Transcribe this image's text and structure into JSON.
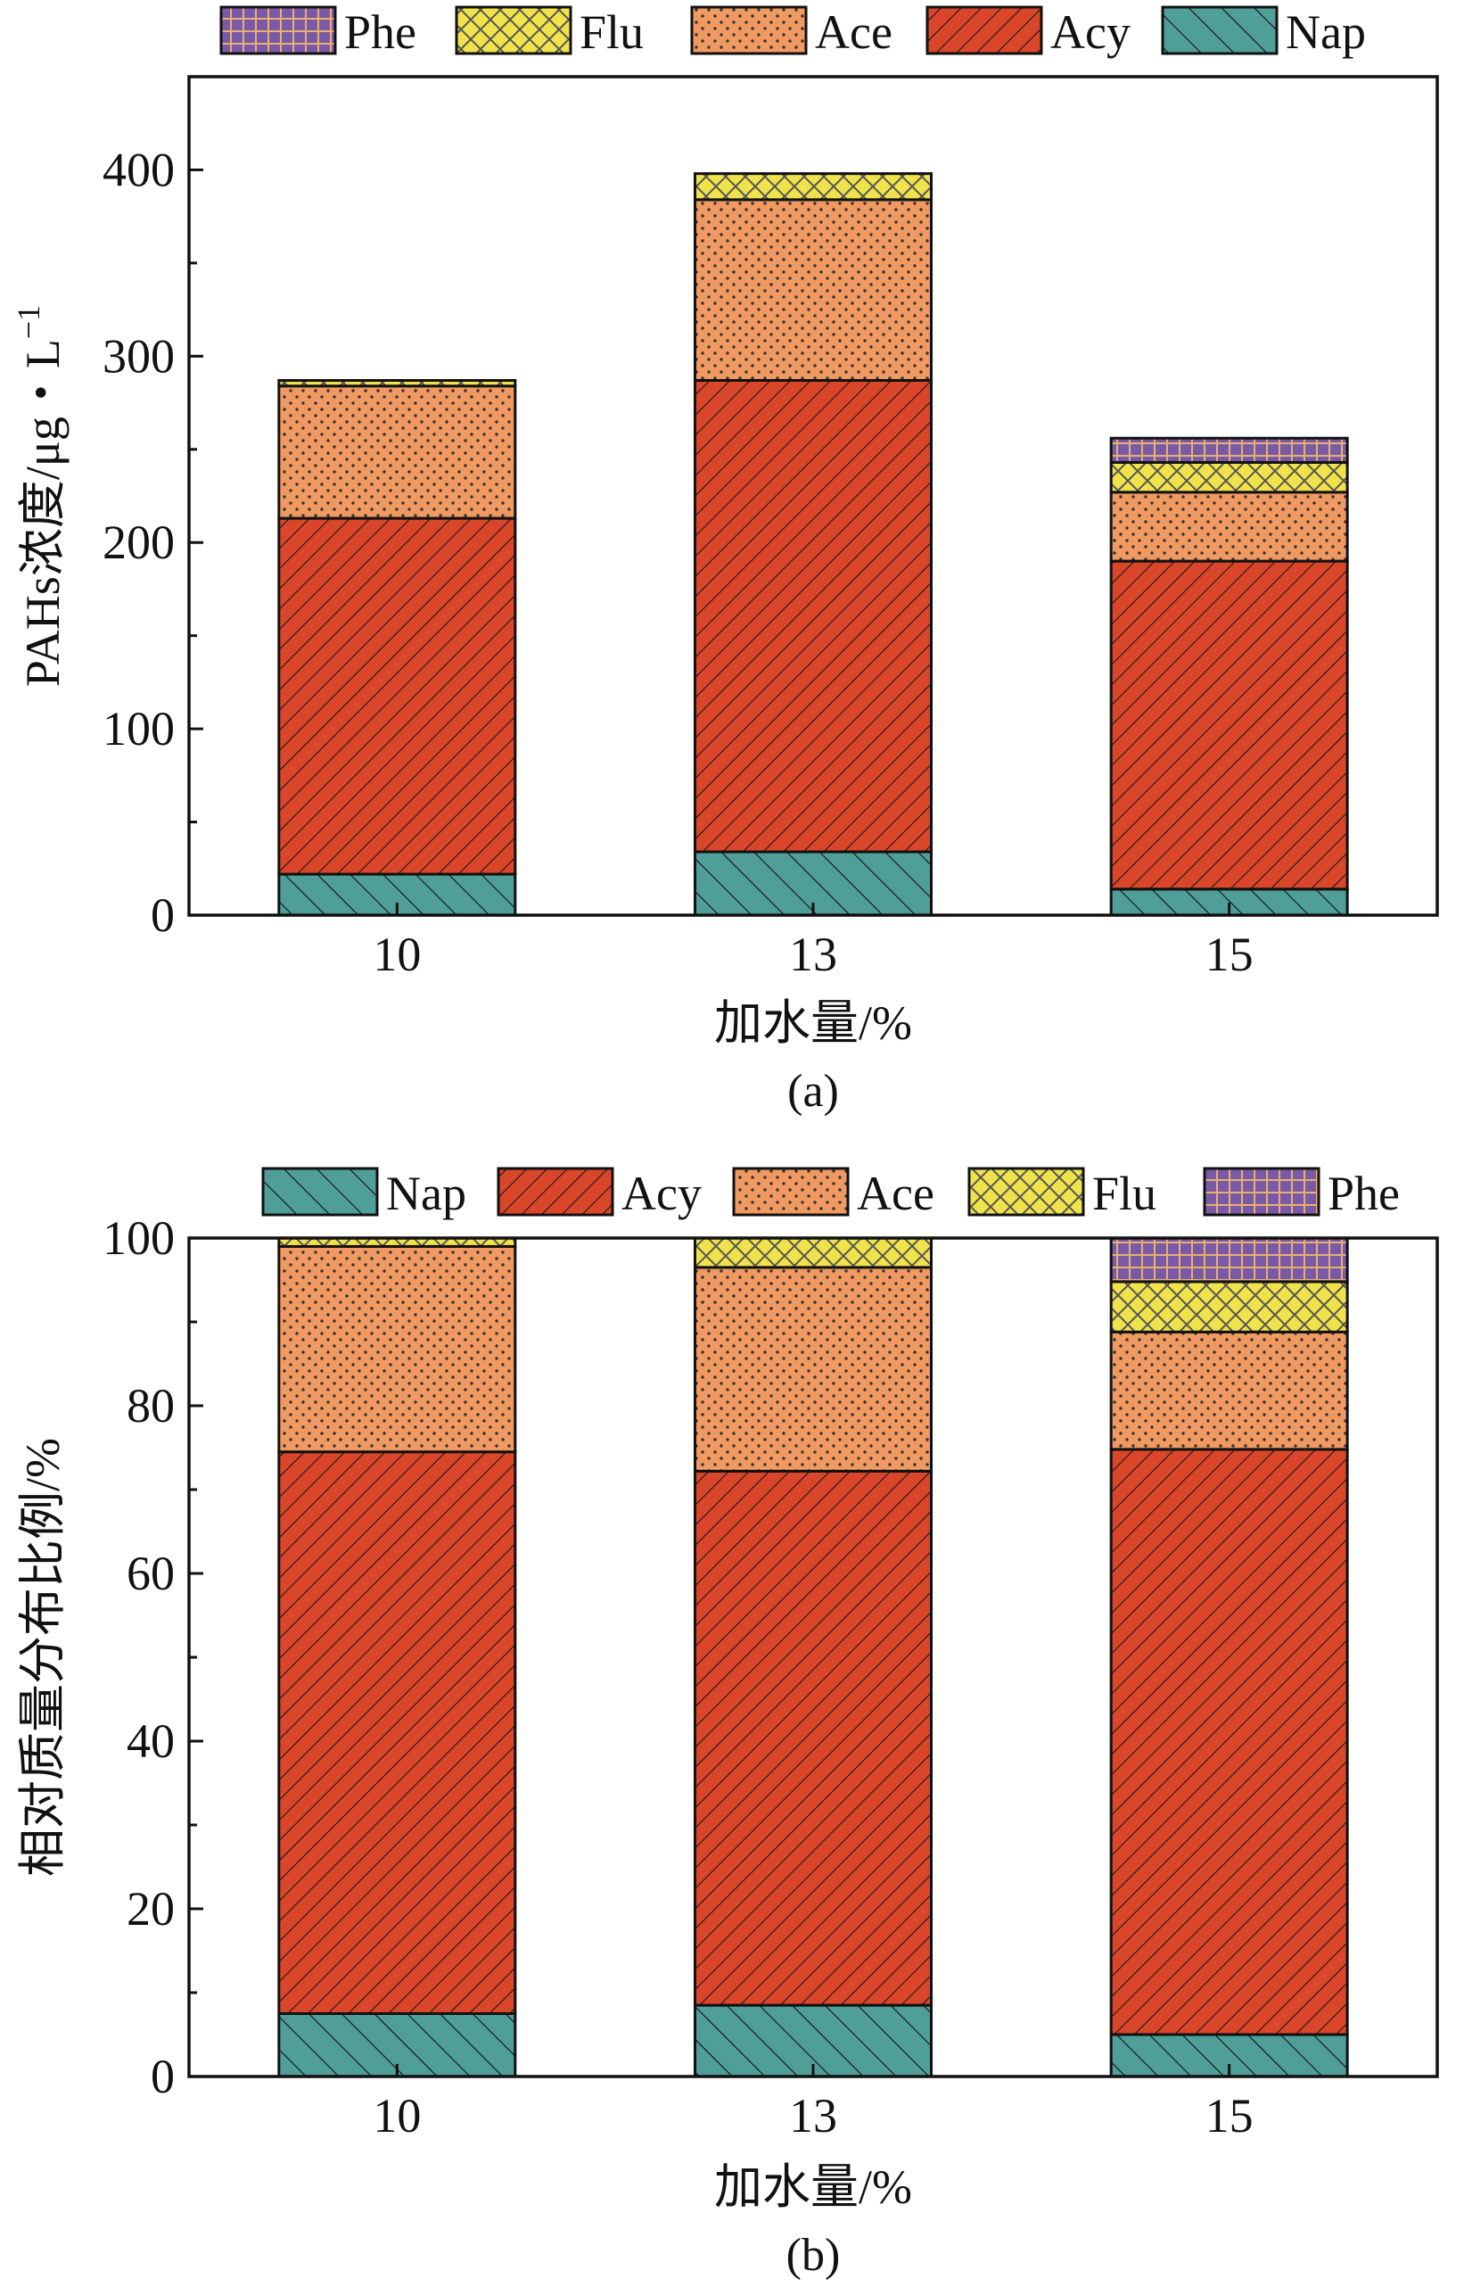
{
  "colors": {
    "Nap": "#4f9e98",
    "Acy": "#d9462a",
    "Ace": "#f09a62",
    "Flu": "#f0e24a",
    "Phe": "#7a5aa6"
  },
  "chart_data": [
    {
      "type": "bar",
      "stacked": true,
      "caption": "(a)",
      "xlabel": "加水量/%",
      "ylabel_main": "PAHs浓度/μg・L",
      "ylabel_sup": "−1",
      "categories": [
        "10",
        "13",
        "15"
      ],
      "ylim": [
        0,
        450
      ],
      "yticks": [
        "0",
        "100",
        "200",
        "300",
        "400"
      ],
      "legend_position": "top",
      "legend_order": [
        "Phe",
        "Flu",
        "Ace",
        "Acy",
        "Nap"
      ],
      "series": [
        {
          "name": "Nap",
          "values": [
            22,
            34,
            14
          ]
        },
        {
          "name": "Acy",
          "values": [
            191,
            253,
            176
          ]
        },
        {
          "name": "Ace",
          "values": [
            71,
            97,
            37
          ]
        },
        {
          "name": "Flu",
          "values": [
            3,
            14,
            16
          ]
        },
        {
          "name": "Phe",
          "values": [
            0,
            0,
            13
          ]
        }
      ]
    },
    {
      "type": "bar",
      "stacked": true,
      "caption": "(b)",
      "xlabel": "加水量/%",
      "ylabel_main": "相对质量分布比例/%",
      "ylabel_sup": "",
      "categories": [
        "10",
        "13",
        "15"
      ],
      "ylim": [
        0,
        100
      ],
      "yticks": [
        "0",
        "20",
        "40",
        "60",
        "80",
        "100"
      ],
      "legend_position": "top",
      "legend_order": [
        "Nap",
        "Acy",
        "Ace",
        "Flu",
        "Phe"
      ],
      "series": [
        {
          "name": "Nap",
          "values": [
            7.5,
            8.5,
            5
          ]
        },
        {
          "name": "Acy",
          "values": [
            67,
            63.7,
            69.8
          ]
        },
        {
          "name": "Ace",
          "values": [
            24.5,
            24.3,
            14
          ]
        },
        {
          "name": "Flu",
          "values": [
            1,
            3.5,
            6
          ]
        },
        {
          "name": "Phe",
          "values": [
            0,
            0,
            5.2
          ]
        }
      ]
    }
  ]
}
